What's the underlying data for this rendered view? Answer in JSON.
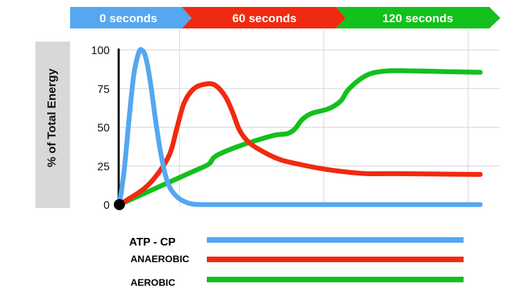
{
  "chart_data": {
    "type": "line",
    "phases": [
      {
        "label": "0 seconds",
        "color": "#55A7F0"
      },
      {
        "label": "60 seconds",
        "color": "#F02A10"
      },
      {
        "label": "120 seconds",
        "color": "#13C01C"
      }
    ],
    "ylabel": "% of Total Energy",
    "xlabel": "",
    "ylim": [
      0,
      100
    ],
    "xlim": [
      0,
      150
    ],
    "yticks": [
      "0",
      "25",
      "50",
      "75",
      "100"
    ],
    "x_gridlines": [
      25,
      85,
      145
    ],
    "grid": true,
    "series": [
      {
        "name": "ATP - CP",
        "color": "#55A7F0",
        "points": [
          [
            0,
            0
          ],
          [
            2,
            22
          ],
          [
            4,
            55
          ],
          [
            6,
            84
          ],
          [
            8,
            98
          ],
          [
            9.3,
            100
          ],
          [
            11,
            95
          ],
          [
            13,
            78
          ],
          [
            15,
            55
          ],
          [
            17,
            35
          ],
          [
            19,
            20
          ],
          [
            21,
            11
          ],
          [
            24,
            5
          ],
          [
            27,
            2
          ],
          [
            30,
            0.5
          ],
          [
            35,
            0
          ],
          [
            60,
            0
          ],
          [
            100,
            0
          ],
          [
            150,
            0
          ]
        ]
      },
      {
        "name": "ANAEROBIC",
        "color": "#F02A10",
        "points": [
          [
            0,
            0
          ],
          [
            10,
            10
          ],
          [
            16,
            20
          ],
          [
            21,
            33
          ],
          [
            24,
            50
          ],
          [
            27,
            66
          ],
          [
            31,
            75
          ],
          [
            36,
            78
          ],
          [
            40,
            77
          ],
          [
            44,
            70
          ],
          [
            47,
            60
          ],
          [
            50,
            48
          ],
          [
            54,
            40
          ],
          [
            60,
            34
          ],
          [
            67,
            29
          ],
          [
            75,
            26
          ],
          [
            85,
            23
          ],
          [
            95,
            21
          ],
          [
            103,
            20
          ],
          [
            115,
            20
          ],
          [
            150,
            19.5
          ]
        ]
      },
      {
        "name": "AEROBIC",
        "color": "#13C01C",
        "points": [
          [
            0,
            0
          ],
          [
            10,
            7
          ],
          [
            20,
            14
          ],
          [
            30,
            21
          ],
          [
            37,
            26
          ],
          [
            39,
            30
          ],
          [
            42,
            33
          ],
          [
            50,
            38
          ],
          [
            58,
            42
          ],
          [
            65,
            45
          ],
          [
            70,
            46
          ],
          [
            73,
            49
          ],
          [
            76,
            55
          ],
          [
            80,
            59
          ],
          [
            87,
            62
          ],
          [
            92,
            67
          ],
          [
            95,
            74
          ],
          [
            100,
            81
          ],
          [
            105,
            85
          ],
          [
            112,
            86.5
          ],
          [
            120,
            86.5
          ],
          [
            135,
            86
          ],
          [
            150,
            85.5
          ]
        ]
      }
    ]
  },
  "legend": [
    {
      "label": "ATP - CP",
      "color": "#55A7F0"
    },
    {
      "label": "ANAEROBIC",
      "color": "#F02A10"
    },
    {
      "label": "AEROBIC",
      "color": "#13C01C"
    }
  ]
}
